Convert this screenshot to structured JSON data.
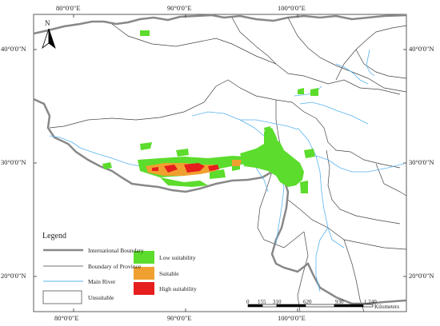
{
  "map": {
    "north_label": "N",
    "top_ticks": [
      "80°0'0\"E",
      "90°0'0\"E",
      "100°0'0\"E"
    ],
    "bottom_ticks": [
      "80°0'0\"E",
      "90°0'0\"E",
      "100°0'0\"E"
    ],
    "left_ticks": [
      "40°0'0\"N",
      "30°0'0\"N",
      "20°0'0\"N"
    ],
    "right_ticks": [
      "40°0'0\"N",
      "30°0'0\"N",
      "20°0'0\"N"
    ],
    "colors": {
      "international_boundary": "#888888",
      "province_boundary": "#444444",
      "river": "#5ab4f0",
      "low": "#5cdc2c",
      "suitable": "#f0a030",
      "high": "#e61e1e"
    }
  },
  "legend": {
    "title": "Legend",
    "international_boundary": "International Boundary",
    "province_boundary": "Boundary of Province",
    "main_river": "Main River",
    "unsuitable": "Unsuitable",
    "low": "Low suitability",
    "suitable": "Suitable",
    "high": "High suitability"
  },
  "scalebar": {
    "ticks": [
      "0",
      "155",
      "310",
      "620",
      "930",
      "1,240"
    ],
    "unit": "Kilometers"
  }
}
